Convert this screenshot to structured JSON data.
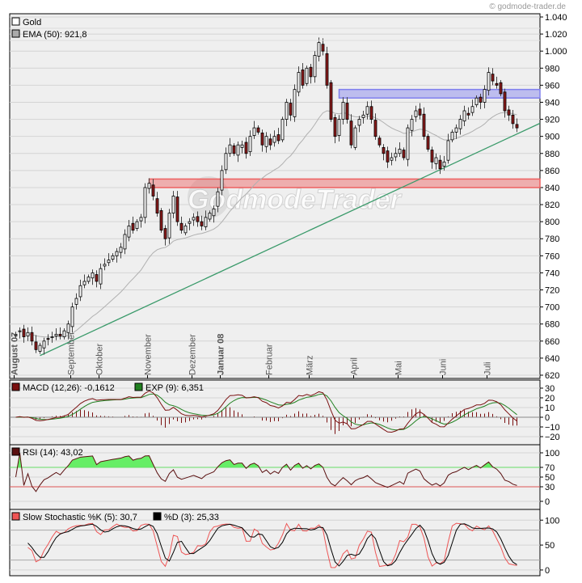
{
  "copyright": "© godmode-trader.de",
  "watermark": "GodmodeTrader",
  "chart_data": {
    "type": "candlestick",
    "title": "Gold",
    "legend": {
      "price": "Gold",
      "ema": "EMA (50): 921,8"
    },
    "ylim": [
      620,
      1040
    ],
    "yticks": [
      620,
      640,
      660,
      680,
      700,
      720,
      740,
      760,
      780,
      800,
      820,
      840,
      860,
      880,
      900,
      920,
      940,
      960,
      980,
      1000,
      1020,
      1040
    ],
    "ytick_labels": [
      "620",
      "640",
      "660",
      "680",
      "700",
      "720",
      "740",
      "760",
      "780",
      "800",
      "820",
      "840",
      "860",
      "880",
      "900",
      "920",
      "940",
      "960",
      "980",
      "1.000",
      "1.020",
      "1.040"
    ],
    "months": [
      {
        "label": "August 07",
        "index": 0,
        "bold": true
      },
      {
        "label": "September",
        "index": 14
      },
      {
        "label": "Oktober",
        "index": 21
      },
      {
        "label": "November",
        "index": 33
      },
      {
        "label": "Dezember",
        "index": 44
      },
      {
        "label": "Januar 08",
        "index": 51,
        "bold": true
      },
      {
        "label": "Februar",
        "index": 63
      },
      {
        "label": "März",
        "index": 73
      },
      {
        "label": "April",
        "index": 84
      },
      {
        "label": "Mai",
        "index": 95
      },
      {
        "label": "Juni",
        "index": 106
      },
      {
        "label": "Juli",
        "index": 117
      }
    ],
    "closes": [
      668,
      672,
      665,
      670,
      660,
      650,
      655,
      660,
      662,
      665,
      668,
      666,
      672,
      680,
      700,
      710,
      725,
      730,
      735,
      740,
      730,
      745,
      750,
      755,
      760,
      765,
      770,
      785,
      795,
      790,
      800,
      805,
      840,
      845,
      830,
      810,
      790,
      780,
      810,
      830,
      800,
      790,
      795,
      800,
      805,
      800,
      795,
      805,
      810,
      815,
      835,
      860,
      880,
      890,
      880,
      890,
      890,
      880,
      900,
      910,
      905,
      890,
      900,
      890,
      900,
      895,
      920,
      940,
      925,
      955,
      975,
      960,
      980,
      970,
      995,
      1010,
      1000,
      960,
      920,
      900,
      920,
      940,
      920,
      890,
      910,
      920,
      925,
      935,
      920,
      900,
      890,
      880,
      870,
      875,
      880,
      885,
      875,
      910,
      920,
      930,
      925,
      900,
      885,
      870,
      875,
      862,
      870,
      895,
      905,
      910,
      920,
      930,
      925,
      935,
      945,
      940,
      955,
      975,
      965,
      960,
      950,
      930,
      925,
      915,
      910
    ],
    "resistance_zone": {
      "from": 945,
      "to": 955,
      "start_index": 80,
      "color": "#8080ee"
    },
    "support_zone": {
      "from": 840,
      "to": 850,
      "start_index": 33,
      "color": "#ee6060"
    },
    "trendline": {
      "start_index": 6,
      "start_price": 643,
      "end_index": 125,
      "end_price": 905,
      "color": "#3a9a6a"
    },
    "panels": {
      "macd": {
        "legend_macd": "MACD (12,26): -0,1612",
        "legend_exp": "EXP (9): 6,351",
        "ylim": [
          -25,
          35
        ],
        "yticks": [
          -20,
          -10,
          0,
          10,
          20,
          30
        ],
        "ytick_labels": [
          "−20",
          "−10",
          "0",
          "10",
          "20",
          "30"
        ]
      },
      "rsi": {
        "legend": "RSI (14): 43,02",
        "ylim": [
          -10,
          110
        ],
        "yticks": [
          0,
          30,
          50,
          70,
          100
        ],
        "ytick_labels": [
          "0",
          "30",
          "50",
          "70",
          "100"
        ]
      },
      "stoch": {
        "legend_k": "Slow Stochastic %K (5): 30,7",
        "legend_d": "%D (3): 25,33",
        "ylim": [
          -5,
          115
        ],
        "yticks": [
          0,
          50,
          100
        ],
        "ytick_labels": [
          "0",
          "50",
          "100"
        ]
      }
    },
    "colors": {
      "bear": "#8b1a1a",
      "bull": "#ffffff",
      "ema": "#b0b0b0",
      "macd": "#7a1010",
      "signal": "#208020",
      "rsi": "#5a1010",
      "rsi_fill": "#66ee66",
      "line70": "#66dd66",
      "line30": "#dd5555",
      "k": "#ee5555",
      "d": "#000000"
    }
  }
}
